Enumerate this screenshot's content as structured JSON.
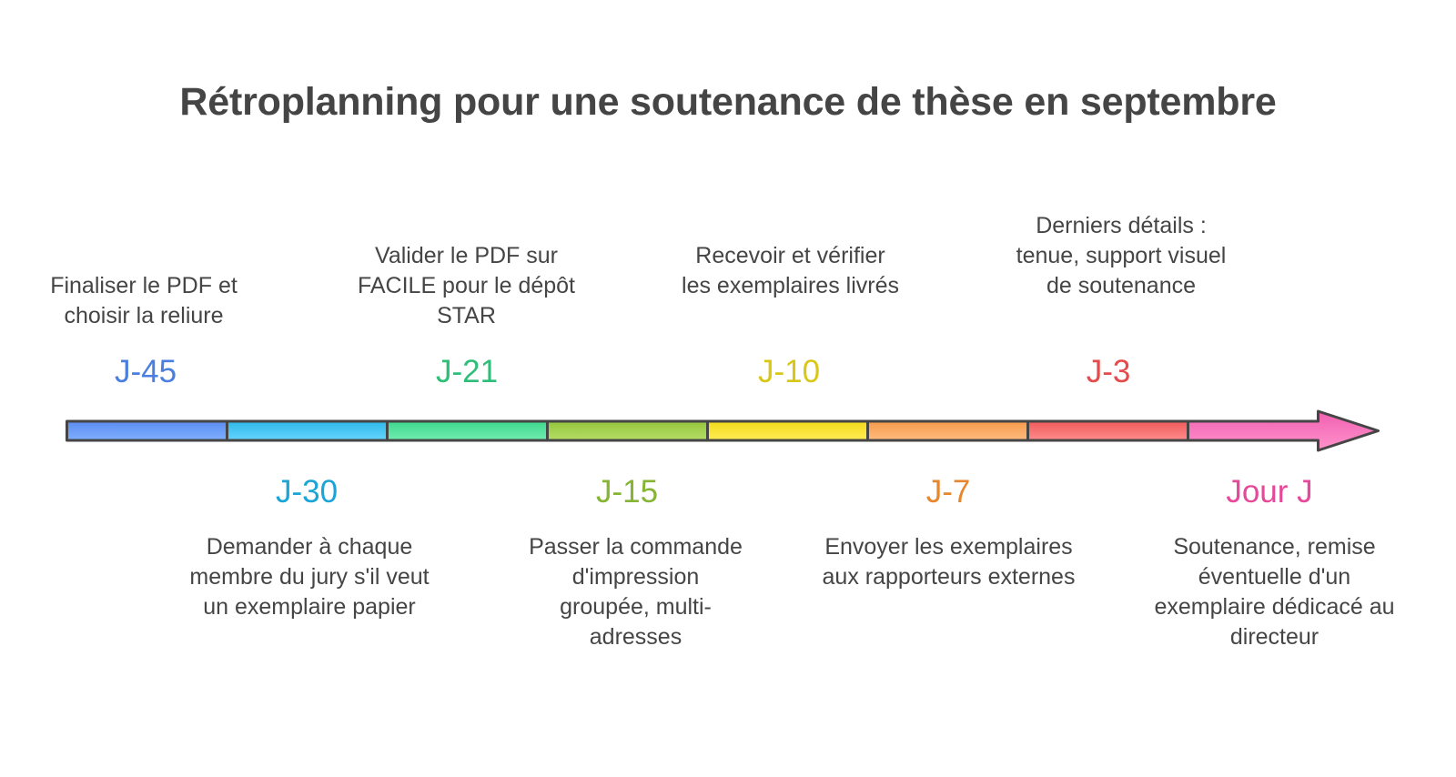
{
  "title": "Rétroplanning pour une soutenance de thèse en septembre",
  "milestones": [
    {
      "label": "J-45",
      "color": "#4A7FE0",
      "description": "Finaliser le PDF et choisir la reliure"
    },
    {
      "label": "J-30",
      "color": "#1BA4D6",
      "description": "Demander à chaque membre du jury s'il veut un exemplaire papier"
    },
    {
      "label": "J-21",
      "color": "#2FBE78",
      "description": "Valider le PDF sur FACILE pour le dépôt STAR"
    },
    {
      "label": "J-15",
      "color": "#86B535",
      "description": "Passer la commande d'impression groupée, multi-adresses"
    },
    {
      "label": "J-10",
      "color": "#D8C716",
      "description": "Recevoir et vérifier les exemplaires livrés"
    },
    {
      "label": "J-7",
      "color": "#E8862E",
      "description": "Envoyer les exemplaires aux rapporteurs externes"
    },
    {
      "label": "J-3",
      "color": "#E64A4A",
      "description": "Derniers détails : tenue, support visuel de soutenance"
    },
    {
      "label": "Jour J",
      "color": "#E6489A",
      "description": "Soutenance, remise éventuelle d'un exemplaire dédicacé au directeur"
    }
  ],
  "segment_colors": [
    [
      "#5B8CF0",
      "#7FB0FF"
    ],
    [
      "#2EB8E8",
      "#66D4FF"
    ],
    [
      "#3DD68C",
      "#72EDB0"
    ],
    [
      "#94C43C",
      "#B5DE66"
    ],
    [
      "#F2DA1A",
      "#FFEC55"
    ],
    [
      "#F59A4A",
      "#FFBC80"
    ],
    [
      "#F05A5A",
      "#FF8C8C"
    ],
    [
      "#F060B0",
      "#FF92CC"
    ]
  ],
  "outline_color": "#454545"
}
